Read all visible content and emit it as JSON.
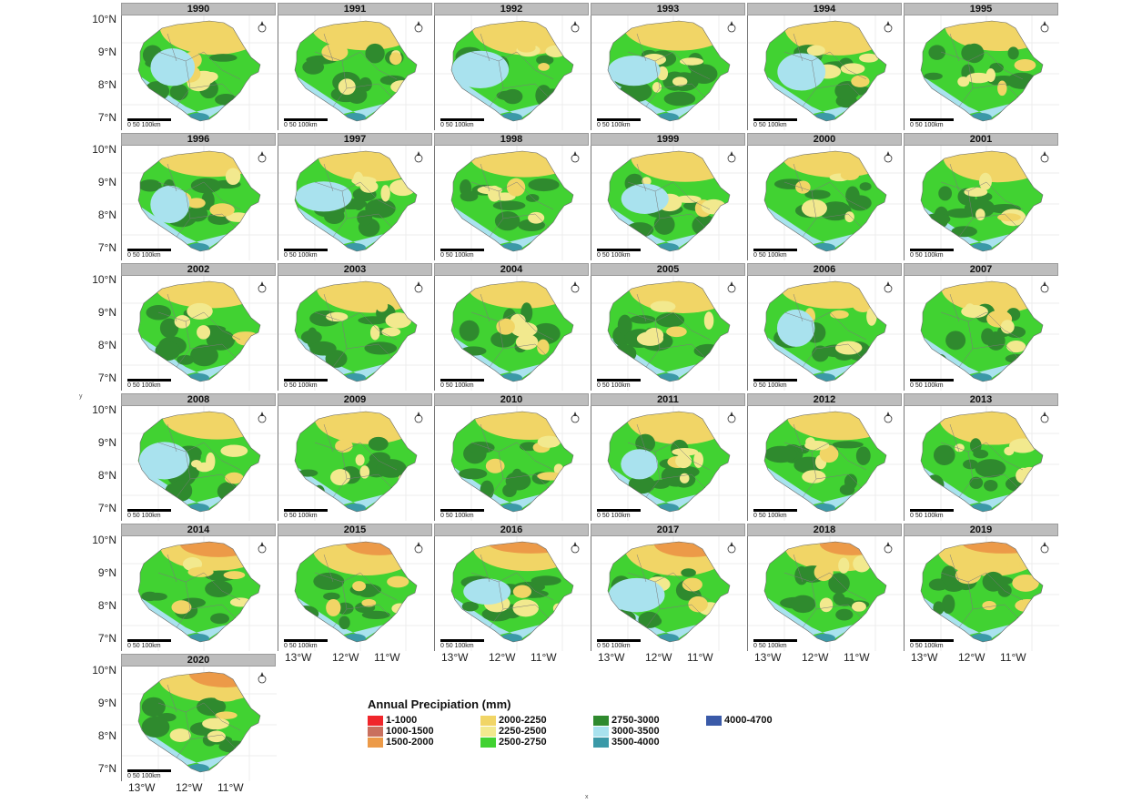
{
  "years": [
    "1990",
    "1991",
    "1992",
    "1993",
    "1994",
    "1995",
    "1996",
    "1997",
    "1998",
    "1999",
    "2000",
    "2001",
    "2002",
    "2003",
    "2004",
    "2005",
    "2006",
    "2007",
    "2008",
    "2009",
    "2010",
    "2011",
    "2012",
    "2013",
    "2014",
    "2015",
    "2016",
    "2017",
    "2018",
    "2019",
    "2020"
  ],
  "lat_labels": [
    "10°N",
    "9°N",
    "8°N",
    "7°N"
  ],
  "lon_labels": [
    "13°W",
    "12°W",
    "11°W"
  ],
  "scale_bar_label": "0    50 100km",
  "north_arrow_icon": "north-arrow-icon",
  "axis_y_title": "y",
  "axis_x_title": "x",
  "legend": {
    "title": "Annual Precipiation (mm)",
    "items": [
      {
        "label": "1-1000",
        "color": "#f0262b"
      },
      {
        "label": "1000-1500",
        "color": "#c9705e"
      },
      {
        "label": "1500-2000",
        "color": "#ec9a48"
      },
      {
        "label": "2000-2250",
        "color": "#f1d566"
      },
      {
        "label": "2250-2500",
        "color": "#f2e98e"
      },
      {
        "label": "2500-2750",
        "color": "#41d232"
      },
      {
        "label": "2750-3000",
        "color": "#2f8a2e"
      },
      {
        "label": "3000-3500",
        "color": "#a9e2ee"
      },
      {
        "label": "3500-4000",
        "color": "#3b99a7"
      },
      {
        "label": "4000-4700",
        "color": "#3a5aa8"
      }
    ]
  },
  "colors": {
    "c1500": "#ec9a48",
    "c2000": "#f1d566",
    "c2250": "#f2e98e",
    "c2500": "#41d232",
    "c2750": "#2f8a2e",
    "c3000": "#a9e2ee",
    "c3500": "#3b99a7",
    "c4000": "#3a5aa8"
  }
}
